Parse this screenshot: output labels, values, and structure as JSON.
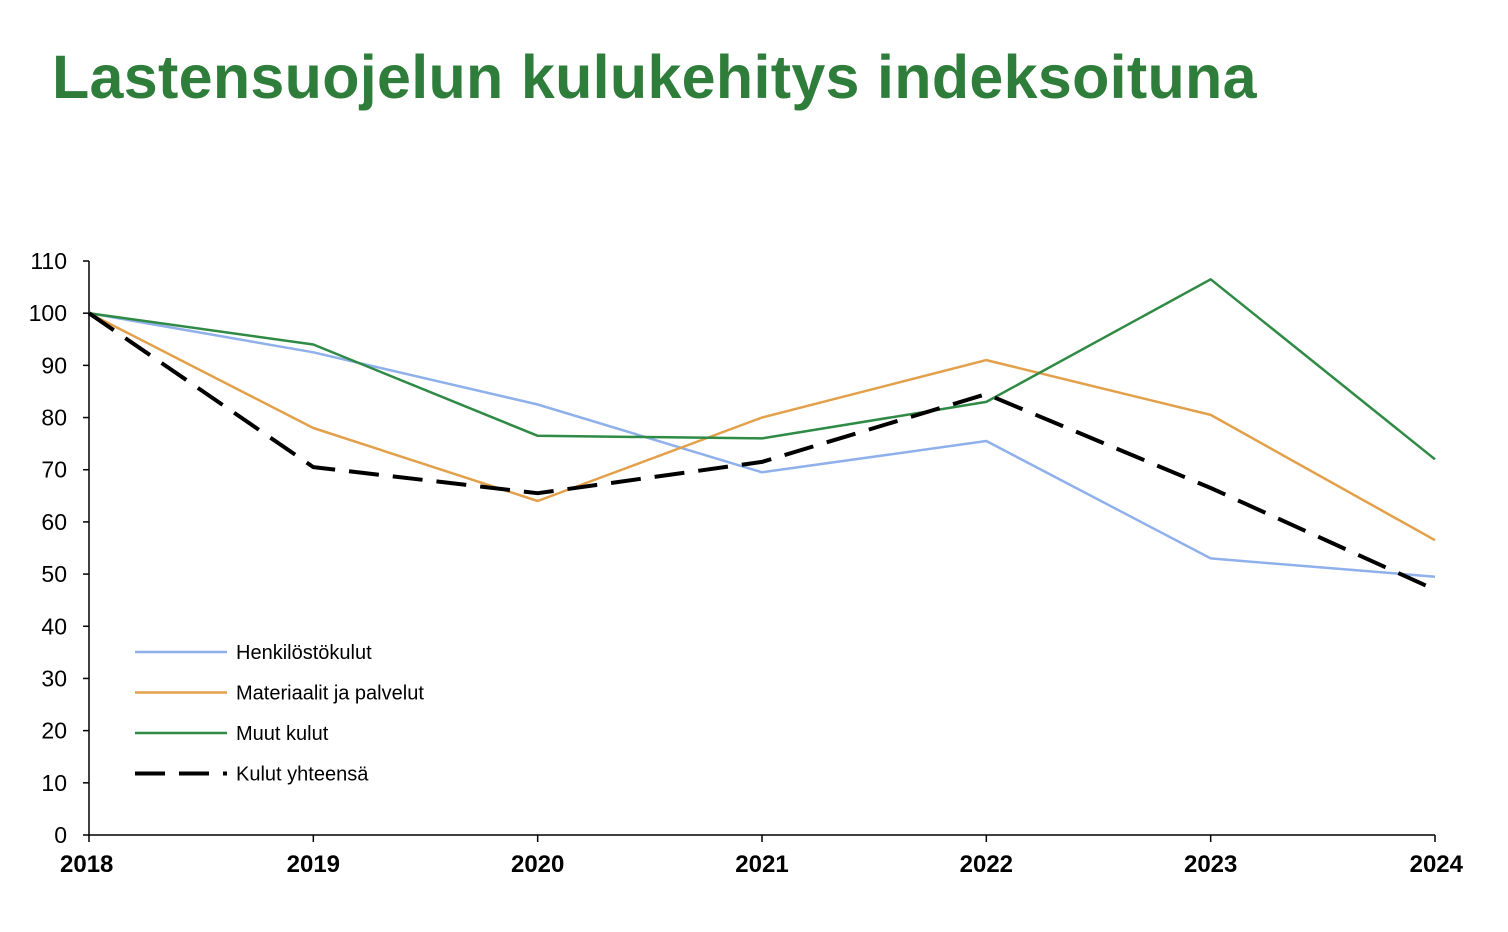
{
  "title": "Lastensuojelun kulukehitys indeksoituna",
  "chart_data": {
    "type": "line",
    "title": "",
    "xlabel": "",
    "ylabel": "",
    "x": [
      "2018",
      "2019",
      "2020",
      "2021",
      "2022",
      "2023",
      "2024"
    ],
    "ylim": [
      0,
      110
    ],
    "yticks": [
      "0",
      "10",
      "20",
      "30",
      "40",
      "50",
      "60",
      "70",
      "80",
      "90",
      "100",
      "110"
    ],
    "grid": false,
    "legend_position": "bottom-left",
    "series": [
      {
        "name": "Henkilöstökulut",
        "color": "#8fb0ea",
        "dashed": false,
        "values": [
          100,
          92.5,
          82.5,
          69.5,
          75.5,
          53,
          49.5
        ]
      },
      {
        "name": "Materiaalit ja palvelut",
        "color": "#e3a04a",
        "dashed": false,
        "values": [
          100,
          78,
          64,
          80,
          91,
          80.5,
          56.5
        ]
      },
      {
        "name": "Muut kulut",
        "color": "#2e8a44",
        "dashed": false,
        "values": [
          100,
          94,
          76.5,
          76,
          83,
          106.5,
          72
        ]
      },
      {
        "name": "Kulut yhteensä",
        "color": "#000000",
        "dashed": true,
        "values": [
          100,
          70.5,
          65.5,
          71.5,
          84.5,
          66.5,
          47
        ]
      }
    ]
  }
}
